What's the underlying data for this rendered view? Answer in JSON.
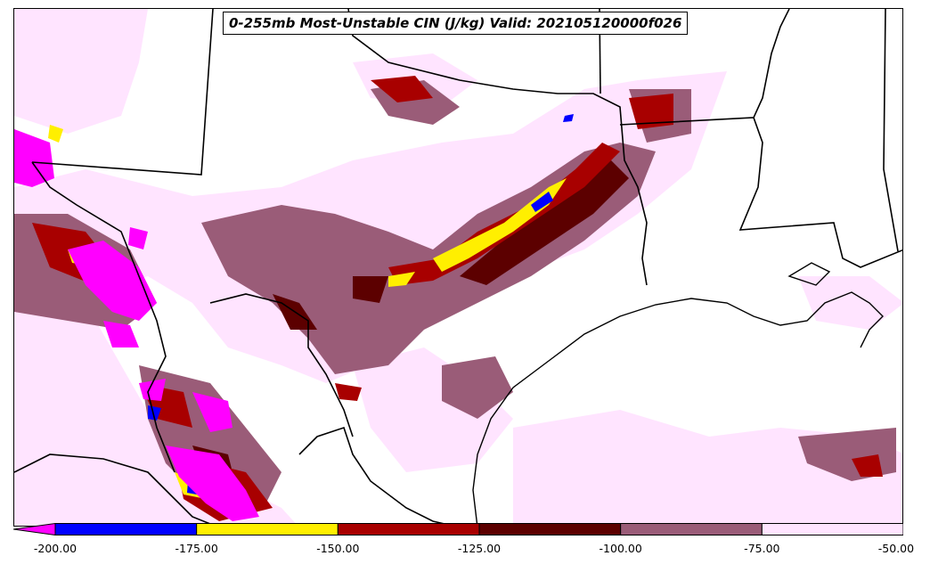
{
  "title": "0-255mb Most-Unstable CIN (J/kg) Valid: 202105120000f026",
  "colorbar": {
    "bins": [
      {
        "min": -200,
        "max": -175,
        "color": "#0000ff"
      },
      {
        "min": -175,
        "max": -150,
        "color": "#ffef00"
      },
      {
        "min": -150,
        "max": -125,
        "color": "#a80000"
      },
      {
        "min": -125,
        "max": -100,
        "color": "#5c0000"
      },
      {
        "min": -100,
        "max": -75,
        "color": "#9a5c78"
      },
      {
        "min": -75,
        "max": -50,
        "color": "#ffe4ff"
      }
    ],
    "extend_min_color": "#ff00ff",
    "ticks": [
      "-200.00",
      "-175.00",
      "-150.00",
      "-125.00",
      "-100.00",
      "-75.00",
      "-50.00"
    ]
  }
}
